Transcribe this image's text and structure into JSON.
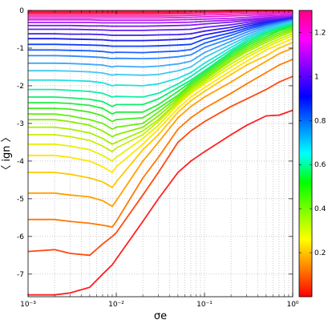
{
  "chart_data": {
    "type": "line",
    "xscale": "log",
    "xlim": [
      0.001,
      1
    ],
    "ylim": [
      -7.6,
      0
    ],
    "grid": true,
    "xlabel": "σe",
    "ylabel": "〈 ign 〉",
    "xtick_labels": [
      "10⁻³",
      "10⁻²",
      "10⁻¹",
      "10⁰"
    ],
    "ytick_labels": [
      "0",
      "-1",
      "-2",
      "-3",
      "-4",
      "-5",
      "-6",
      "-7"
    ],
    "colorbar": {
      "range": [
        0,
        1.3
      ],
      "tick_labels": [
        "0.2",
        "0.4",
        "0.6",
        "0.8",
        "1",
        "1.2"
      ],
      "colors": [
        "#ff0000",
        "#ff8000",
        "#ffff00",
        "#80ff00",
        "#00ff00",
        "#00ffff",
        "#0080ff",
        "#0000ff",
        "#8000ff",
        "#ff00ff",
        "#ff0080"
      ]
    },
    "x": [
      0.001,
      0.002,
      0.003,
      0.005,
      0.007,
      0.009,
      0.01,
      0.02,
      0.03,
      0.05,
      0.07,
      0.1,
      0.2,
      0.3,
      0.5,
      0.7,
      1.0
    ],
    "series": [
      {
        "color": "#ff2020",
        "values": [
          -7.55,
          -7.55,
          -7.5,
          -7.35,
          -7.0,
          -6.75,
          -6.6,
          -5.6,
          -5.0,
          -4.3,
          -4.0,
          -3.75,
          -3.3,
          -3.05,
          -2.8,
          -2.78,
          -2.65
        ]
      },
      {
        "color": "#ff4a10",
        "values": [
          -6.4,
          -6.35,
          -6.45,
          -6.5,
          -6.2,
          -6.0,
          -5.9,
          -4.9,
          -4.3,
          -3.5,
          -3.2,
          -2.95,
          -2.55,
          -2.35,
          -2.1,
          -1.9,
          -1.75
        ]
      },
      {
        "color": "#ff7a00",
        "values": [
          -5.55,
          -5.55,
          -5.6,
          -5.65,
          -5.7,
          -5.75,
          -5.6,
          -4.45,
          -3.9,
          -3.15,
          -2.85,
          -2.6,
          -2.2,
          -1.95,
          -1.65,
          -1.45,
          -1.3
        ]
      },
      {
        "color": "#ffa000",
        "values": [
          -4.85,
          -4.85,
          -4.9,
          -4.95,
          -5.05,
          -5.2,
          -5.05,
          -4.0,
          -3.5,
          -2.85,
          -2.55,
          -2.3,
          -1.9,
          -1.65,
          -1.35,
          -1.15,
          -1.0
        ]
      },
      {
        "color": "#ffc800",
        "values": [
          -4.3,
          -4.3,
          -4.35,
          -4.45,
          -4.55,
          -4.7,
          -4.55,
          -3.7,
          -3.3,
          -2.7,
          -2.4,
          -2.15,
          -1.7,
          -1.45,
          -1.2,
          -1.0,
          -0.85
        ]
      },
      {
        "color": "#ffe600",
        "values": [
          -3.85,
          -3.85,
          -3.9,
          -4.0,
          -4.15,
          -4.3,
          -4.15,
          -3.55,
          -3.15,
          -2.6,
          -2.3,
          -2.05,
          -1.6,
          -1.35,
          -1.05,
          -0.9,
          -0.75
        ]
      },
      {
        "color": "#e8f000",
        "values": [
          -3.55,
          -3.55,
          -3.6,
          -3.7,
          -3.85,
          -4.0,
          -3.9,
          -3.4,
          -3.05,
          -2.5,
          -2.2,
          -1.95,
          -1.5,
          -1.25,
          -0.98,
          -0.82,
          -0.68
        ]
      },
      {
        "color": "#c8f000",
        "values": [
          -3.3,
          -3.3,
          -3.35,
          -3.45,
          -3.6,
          -3.75,
          -3.65,
          -3.3,
          -2.95,
          -2.45,
          -2.15,
          -1.9,
          -1.42,
          -1.18,
          -0.92,
          -0.76,
          -0.62
        ]
      },
      {
        "color": "#a8ef00",
        "values": [
          -3.1,
          -3.1,
          -3.15,
          -3.25,
          -3.4,
          -3.55,
          -3.5,
          -3.2,
          -2.9,
          -2.4,
          -2.1,
          -1.85,
          -1.35,
          -1.1,
          -0.85,
          -0.7,
          -0.56
        ]
      },
      {
        "color": "#88ee00",
        "values": [
          -2.9,
          -2.9,
          -2.95,
          -3.05,
          -3.2,
          -3.35,
          -3.3,
          -3.1,
          -2.8,
          -2.35,
          -2.05,
          -1.8,
          -1.3,
          -1.05,
          -0.8,
          -0.65,
          -0.52
        ]
      },
      {
        "color": "#66ee10",
        "values": [
          -2.75,
          -2.75,
          -2.8,
          -2.9,
          -3.0,
          -3.15,
          -3.1,
          -3.0,
          -2.7,
          -2.3,
          -2.0,
          -1.75,
          -1.25,
          -1.0,
          -0.75,
          -0.6,
          -0.48
        ]
      },
      {
        "color": "#44ee20",
        "values": [
          -2.6,
          -2.6,
          -2.62,
          -2.7,
          -2.8,
          -2.95,
          -2.9,
          -2.85,
          -2.6,
          -2.25,
          -1.95,
          -1.7,
          -1.2,
          -0.95,
          -0.7,
          -0.55,
          -0.44
        ]
      },
      {
        "color": "#22ee40",
        "values": [
          -2.45,
          -2.45,
          -2.47,
          -2.52,
          -2.6,
          -2.75,
          -2.7,
          -2.7,
          -2.5,
          -2.15,
          -1.9,
          -1.65,
          -1.15,
          -0.9,
          -0.65,
          -0.52,
          -0.4
        ]
      },
      {
        "color": "#10ee70",
        "values": [
          -2.3,
          -2.3,
          -2.32,
          -2.36,
          -2.42,
          -2.55,
          -2.5,
          -2.5,
          -2.35,
          -2.05,
          -1.85,
          -1.6,
          -1.1,
          -0.85,
          -0.6,
          -0.48,
          -0.37
        ]
      },
      {
        "color": "#10eea8",
        "values": [
          -2.1,
          -2.1,
          -2.12,
          -2.15,
          -2.2,
          -2.3,
          -2.28,
          -2.3,
          -2.2,
          -1.95,
          -1.75,
          -1.5,
          -1.05,
          -0.8,
          -0.56,
          -0.44,
          -0.34
        ]
      },
      {
        "color": "#20e0e0",
        "values": [
          -1.85,
          -1.85,
          -1.86,
          -1.88,
          -1.92,
          -2.0,
          -1.98,
          -2.0,
          -1.95,
          -1.8,
          -1.65,
          -1.4,
          -0.98,
          -0.75,
          -0.52,
          -0.41,
          -0.31
        ]
      },
      {
        "color": "#40c8f0",
        "values": [
          -1.6,
          -1.6,
          -1.61,
          -1.63,
          -1.66,
          -1.72,
          -1.7,
          -1.72,
          -1.7,
          -1.6,
          -1.5,
          -1.25,
          -0.9,
          -0.7,
          -0.48,
          -0.38,
          -0.28
        ]
      },
      {
        "color": "#40a8f8",
        "values": [
          -1.4,
          -1.4,
          -1.41,
          -1.43,
          -1.45,
          -1.5,
          -1.48,
          -1.5,
          -1.48,
          -1.42,
          -1.35,
          -1.12,
          -0.82,
          -0.64,
          -0.44,
          -0.35,
          -0.26
        ]
      },
      {
        "color": "#3088ff",
        "values": [
          -1.2,
          -1.2,
          -1.21,
          -1.23,
          -1.25,
          -1.28,
          -1.27,
          -1.28,
          -1.27,
          -1.23,
          -1.18,
          -0.98,
          -0.74,
          -0.58,
          -0.4,
          -0.32,
          -0.24
        ]
      },
      {
        "color": "#2060ff",
        "values": [
          -1.05,
          -1.05,
          -1.06,
          -1.07,
          -1.09,
          -1.12,
          -1.11,
          -1.12,
          -1.1,
          -1.08,
          -1.04,
          -0.87,
          -0.66,
          -0.52,
          -0.37,
          -0.29,
          -0.22
        ]
      },
      {
        "color": "#1040ff",
        "values": [
          -0.9,
          -0.9,
          -0.91,
          -0.92,
          -0.93,
          -0.95,
          -0.95,
          -0.95,
          -0.94,
          -0.92,
          -0.9,
          -0.76,
          -0.59,
          -0.47,
          -0.34,
          -0.27,
          -0.2
        ]
      },
      {
        "color": "#2020ee",
        "values": [
          -0.75,
          -0.75,
          -0.76,
          -0.77,
          -0.78,
          -0.8,
          -0.8,
          -0.8,
          -0.79,
          -0.77,
          -0.75,
          -0.65,
          -0.52,
          -0.42,
          -0.31,
          -0.25,
          -0.18
        ]
      },
      {
        "color": "#4020e8",
        "values": [
          -0.62,
          -0.62,
          -0.63,
          -0.63,
          -0.64,
          -0.66,
          -0.66,
          -0.66,
          -0.65,
          -0.64,
          -0.62,
          -0.55,
          -0.45,
          -0.37,
          -0.28,
          -0.23,
          -0.17
        ]
      },
      {
        "color": "#6020f0",
        "values": [
          -0.5,
          -0.5,
          -0.5,
          -0.51,
          -0.52,
          -0.53,
          -0.53,
          -0.53,
          -0.52,
          -0.51,
          -0.5,
          -0.45,
          -0.38,
          -0.32,
          -0.25,
          -0.21,
          -0.16
        ]
      },
      {
        "color": "#8020f0",
        "values": [
          -0.4,
          -0.4,
          -0.4,
          -0.41,
          -0.41,
          -0.42,
          -0.42,
          -0.42,
          -0.41,
          -0.4,
          -0.39,
          -0.36,
          -0.31,
          -0.27,
          -0.22,
          -0.19,
          -0.15
        ]
      },
      {
        "color": "#a020f0",
        "values": [
          -0.32,
          -0.32,
          -0.32,
          -0.32,
          -0.33,
          -0.33,
          -0.33,
          -0.33,
          -0.33,
          -0.32,
          -0.31,
          -0.29,
          -0.26,
          -0.23,
          -0.19,
          -0.17,
          -0.13
        ]
      },
      {
        "color": "#c020f0",
        "values": [
          -0.25,
          -0.25,
          -0.25,
          -0.25,
          -0.26,
          -0.26,
          -0.26,
          -0.26,
          -0.26,
          -0.25,
          -0.24,
          -0.23,
          -0.21,
          -0.18,
          -0.15,
          -0.14,
          -0.12
        ]
      },
      {
        "color": "#e020e0",
        "values": [
          -0.2,
          -0.2,
          -0.2,
          -0.2,
          -0.2,
          -0.2,
          -0.2,
          -0.2,
          -0.2,
          -0.19,
          -0.18,
          -0.17,
          -0.15,
          -0.13,
          -0.11,
          -0.1,
          -0.09
        ]
      },
      {
        "color": "#f020b0",
        "values": [
          -0.15,
          -0.15,
          -0.15,
          -0.15,
          -0.15,
          -0.15,
          -0.15,
          -0.15,
          -0.15,
          -0.14,
          -0.13,
          -0.12,
          -0.1,
          -0.08,
          -0.07,
          -0.06,
          -0.05
        ]
      },
      {
        "color": "#f81880",
        "values": [
          -0.1,
          -0.1,
          -0.1,
          -0.1,
          -0.1,
          -0.1,
          -0.1,
          -0.1,
          -0.1,
          -0.09,
          -0.08,
          -0.07,
          -0.05,
          -0.04,
          -0.03,
          -0.03,
          -0.02
        ]
      },
      {
        "color": "#ff1050",
        "values": [
          -0.06,
          -0.06,
          -0.06,
          -0.06,
          -0.06,
          -0.06,
          -0.06,
          -0.06,
          -0.06,
          -0.05,
          -0.04,
          -0.03,
          -0.02,
          -0.01,
          -0.01,
          -0.01,
          -0.01
        ]
      },
      {
        "color": "#ff1020",
        "values": [
          -0.03,
          -0.03,
          -0.03,
          -0.03,
          -0.03,
          -0.03,
          -0.03,
          -0.03,
          -0.03,
          -0.02,
          -0.02,
          -0.01,
          0.0,
          0.0,
          0.0,
          0.0,
          0.0
        ]
      }
    ]
  }
}
